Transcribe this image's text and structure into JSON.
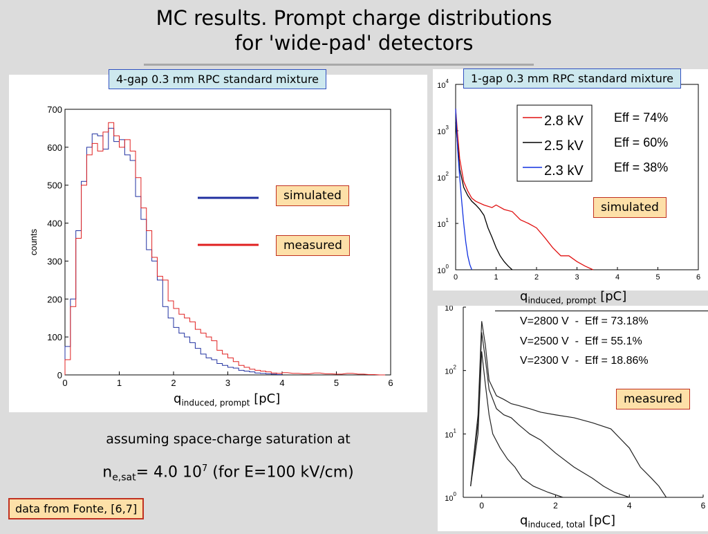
{
  "title_line1": "MC results. Prompt charge distributions",
  "title_line2": "for 'wide-pad' detectors",
  "note_assume": "assuming space-charge saturation at",
  "note_nesat": {
    "n": "n",
    "sub": "e,sat",
    "value": "= 4.0 10",
    "sup": "7",
    "rest": " (for E=100 kV/cm)"
  },
  "credit": "data from Fonte, [6,7]",
  "colors": {
    "simulated": "#2030a0",
    "measured": "#e02020",
    "v28": "#e01010",
    "v25": "#000000",
    "v23": "#1030e0"
  },
  "chart_data": [
    {
      "type": "line",
      "title": "4-gap 0.3 mm RPC standard mixture",
      "xlabel": {
        "q": "q",
        "sub": "induced, prompt",
        "unit": "[pC]"
      },
      "ylabel": "counts",
      "xlim": [
        0,
        6
      ],
      "ylim": [
        0,
        700
      ],
      "xticks": [
        0,
        1,
        2,
        3,
        4,
        5,
        6
      ],
      "yticks": [
        0,
        100,
        200,
        300,
        400,
        500,
        600,
        700
      ],
      "grid": false,
      "legend": {
        "placement": "center-right",
        "entries": [
          "simulated",
          "measured"
        ]
      },
      "series": [
        {
          "name": "simulated",
          "x": [
            0,
            0.1,
            0.2,
            0.3,
            0.4,
            0.5,
            0.6,
            0.7,
            0.8,
            0.9,
            1.0,
            1.1,
            1.2,
            1.3,
            1.4,
            1.5,
            1.6,
            1.7,
            1.8,
            1.9,
            2.0,
            2.1,
            2.2,
            2.3,
            2.4,
            2.5,
            2.6,
            2.7,
            2.8,
            2.9,
            3.0,
            3.1,
            3.2,
            3.3,
            3.4,
            3.5,
            3.6,
            3.7,
            3.8,
            3.9
          ],
          "y": [
            75,
            200,
            380,
            510,
            600,
            635,
            630,
            595,
            650,
            615,
            620,
            580,
            565,
            470,
            410,
            330,
            300,
            250,
            180,
            150,
            125,
            110,
            100,
            85,
            70,
            55,
            45,
            40,
            30,
            25,
            20,
            18,
            12,
            10,
            8,
            5,
            4,
            3,
            2,
            1
          ]
        },
        {
          "name": "measured",
          "x": [
            0,
            0.1,
            0.2,
            0.3,
            0.4,
            0.5,
            0.6,
            0.7,
            0.8,
            0.9,
            1.0,
            1.1,
            1.2,
            1.3,
            1.4,
            1.5,
            1.6,
            1.7,
            1.8,
            1.9,
            2.0,
            2.1,
            2.2,
            2.3,
            2.4,
            2.5,
            2.6,
            2.7,
            2.8,
            2.9,
            3.0,
            3.1,
            3.2,
            3.3,
            3.4,
            3.5,
            3.6,
            3.7,
            3.8,
            3.9,
            4.0,
            4.2,
            4.4,
            4.6,
            4.8,
            5.0,
            5.2,
            5.4,
            5.6,
            5.8
          ],
          "y": [
            40,
            180,
            360,
            500,
            580,
            610,
            590,
            640,
            665,
            630,
            600,
            620,
            590,
            520,
            440,
            380,
            310,
            260,
            250,
            195,
            175,
            160,
            150,
            140,
            120,
            110,
            100,
            90,
            65,
            55,
            45,
            35,
            25,
            20,
            15,
            12,
            10,
            8,
            5,
            4,
            6,
            4,
            3,
            5,
            3,
            2,
            4,
            2,
            1,
            0
          ]
        }
      ]
    },
    {
      "type": "line",
      "title": "1-gap 0.3 mm RPC standard mixture",
      "xlabel": {
        "q": "q",
        "sub": "induced, prompt",
        "unit": "[pC]"
      },
      "xlim": [
        0,
        6
      ],
      "yscale": "log",
      "ylim": [
        1,
        10000
      ],
      "xticks": [
        0,
        1,
        2,
        3,
        4,
        5,
        6
      ],
      "ytick_labels": [
        {
          "b": "10",
          "e": "0"
        },
        {
          "b": "10",
          "e": "1"
        },
        {
          "b": "10",
          "e": "2"
        },
        {
          "b": "10",
          "e": "3"
        },
        {
          "b": "10",
          "e": "4"
        }
      ],
      "legend": {
        "placement": "top-right",
        "entries": [
          "2.8 kV",
          "2.5 kV",
          "2.3 kV"
        ]
      },
      "eff_labels": [
        "Eff = 74%",
        "Eff = 60%",
        "Eff = 38%"
      ],
      "annotation": "simulated",
      "series": [
        {
          "name": "2.8 kV",
          "x": [
            0,
            0.05,
            0.1,
            0.2,
            0.3,
            0.4,
            0.5,
            0.7,
            0.9,
            1.0,
            1.2,
            1.4,
            1.6,
            1.8,
            2.0,
            2.2,
            2.4,
            2.6,
            2.8,
            3.0,
            3.2,
            3.4
          ],
          "y": [
            3000,
            800,
            250,
            80,
            50,
            35,
            30,
            25,
            22,
            25,
            20,
            18,
            12,
            10,
            8,
            5,
            3,
            2,
            2,
            1.5,
            1.2,
            1
          ]
        },
        {
          "name": "2.5 kV",
          "x": [
            0,
            0.05,
            0.1,
            0.2,
            0.3,
            0.4,
            0.5,
            0.6,
            0.7,
            0.8,
            0.9,
            1.0,
            1.1,
            1.2,
            1.3,
            1.4
          ],
          "y": [
            1500,
            500,
            150,
            60,
            40,
            30,
            25,
            20,
            15,
            8,
            5,
            3,
            2,
            1.5,
            1.2,
            1
          ]
        },
        {
          "name": "2.3 kV",
          "x": [
            0,
            0.05,
            0.1,
            0.15,
            0.2,
            0.25,
            0.3,
            0.35,
            0.4
          ],
          "y": [
            3000,
            400,
            100,
            30,
            10,
            4,
            2,
            1.3,
            1
          ]
        }
      ]
    },
    {
      "type": "line",
      "xlabel": {
        "q": "q",
        "sub": "induced, total",
        "unit": "[pC]"
      },
      "xlim": [
        -0.5,
        6
      ],
      "yscale": "log",
      "ylim": [
        1,
        1000
      ],
      "xticks": [
        0,
        2,
        4,
        6
      ],
      "ytick_labels": [
        {
          "b": "10",
          "e": "0"
        },
        {
          "b": "10",
          "e": "1"
        },
        {
          "b": "10",
          "e": "2"
        },
        {
          "b": "10",
          "e": "3"
        }
      ],
      "legend": {
        "placement": "top",
        "entries": [
          "V=2800 V  -  Eff = 73.18%",
          "V=2500 V  -  Eff = 55.1%",
          "V=2300 V  -  Eff = 18.86%"
        ]
      },
      "annotation": "measured",
      "series": [
        {
          "name": "V=2800 V",
          "x": [
            -0.3,
            -0.1,
            0,
            0.1,
            0.2,
            0.4,
            0.6,
            0.8,
            1.0,
            1.3,
            1.6,
            2.0,
            2.5,
            3.0,
            3.5,
            4.0,
            4.3,
            4.6,
            4.8,
            5.0
          ],
          "y": [
            1.5,
            20,
            600,
            250,
            70,
            40,
            35,
            30,
            28,
            25,
            22,
            20,
            18,
            15,
            12,
            6,
            3,
            2,
            1.5,
            1
          ]
        },
        {
          "name": "V=2500 V",
          "x": [
            -0.3,
            -0.1,
            0,
            0.1,
            0.2,
            0.4,
            0.6,
            0.8,
            1.0,
            1.3,
            1.6,
            2.0,
            2.5,
            3.0,
            3.3,
            3.6,
            4.0
          ],
          "y": [
            1.5,
            15,
            400,
            150,
            50,
            25,
            20,
            18,
            14,
            10,
            8,
            5,
            3,
            2,
            1.5,
            1.2,
            1
          ]
        },
        {
          "name": "V=2300 V",
          "x": [
            -0.3,
            -0.1,
            0,
            0.1,
            0.2,
            0.3,
            0.5,
            0.7,
            0.9,
            1.1,
            1.4,
            1.8,
            2.2
          ],
          "y": [
            1.5,
            10,
            200,
            60,
            20,
            10,
            6,
            4,
            3,
            2,
            1.5,
            1.2,
            1
          ]
        }
      ]
    }
  ]
}
